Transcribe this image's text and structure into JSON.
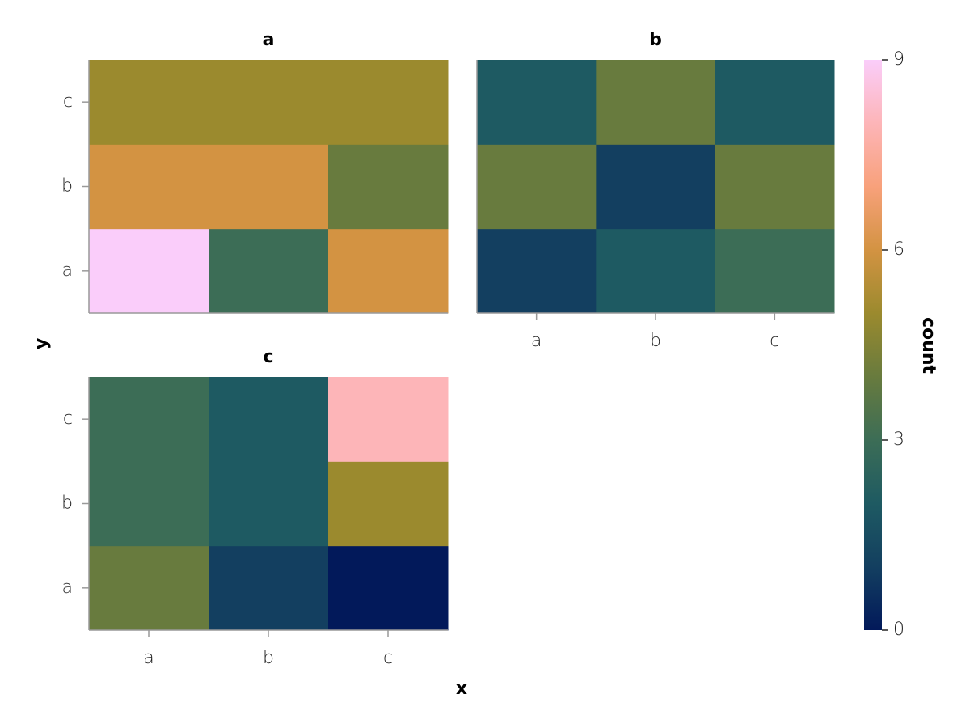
{
  "chart_data": {
    "type": "heatmap",
    "x_label": "x",
    "y_label": "y",
    "x_categories": [
      "a",
      "b",
      "c"
    ],
    "y_categories": [
      "a",
      "b",
      "c"
    ],
    "facets": [
      {
        "title": "a",
        "values": [
          [
            9,
            3,
            6
          ],
          [
            6,
            6,
            4
          ],
          [
            5,
            5,
            5
          ]
        ]
      },
      {
        "title": "b",
        "values": [
          [
            1,
            2,
            3
          ],
          [
            4,
            1,
            4
          ],
          [
            2,
            4,
            2
          ]
        ]
      },
      {
        "title": "c",
        "values": [
          [
            4,
            1,
            0
          ],
          [
            3,
            2,
            5
          ],
          [
            3,
            2,
            8
          ]
        ]
      }
    ],
    "colorbar_label": "count",
    "clim": [
      0,
      9
    ],
    "cticks": [
      0,
      3,
      6,
      9
    ],
    "colorscale": [
      "#02195a",
      "#133f60",
      "#1e5a62",
      "#3c6d56",
      "#687b3e",
      "#9b8a2e",
      "#d39342",
      "#f8a17b",
      "#fdb5b8",
      "#facdfa"
    ]
  }
}
